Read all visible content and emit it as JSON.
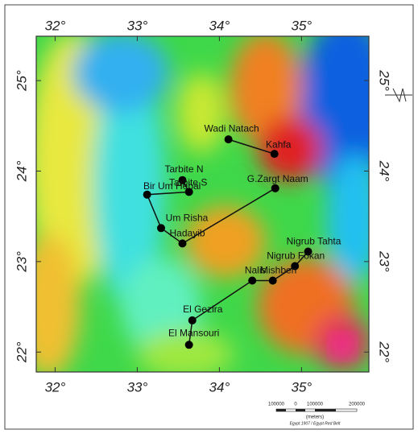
{
  "map": {
    "xlim": [
      31.77,
      35.82
    ],
    "ylim": [
      21.78,
      25.49
    ],
    "lon_ticks": [
      {
        "value": 32,
        "label": "32°"
      },
      {
        "value": 33,
        "label": "33°"
      },
      {
        "value": 34,
        "label": "34°"
      },
      {
        "value": 35,
        "label": "35°"
      }
    ],
    "lat_ticks": [
      {
        "value": 25,
        "label": "25°"
      },
      {
        "value": 24,
        "label": "24°"
      },
      {
        "value": 23,
        "label": "23°"
      },
      {
        "value": 22,
        "label": "22°"
      }
    ],
    "stations": [
      {
        "name": "Wadi Natach",
        "lon": 34.11,
        "lat": 24.35
      },
      {
        "name": "Kahfa",
        "lon": 34.67,
        "lat": 24.19
      },
      {
        "name": "Tarbite N",
        "lon": 33.55,
        "lat": 23.9
      },
      {
        "name": "Tarbite S",
        "lon": 33.63,
        "lat": 23.77
      },
      {
        "name": "Bir Um Hebal",
        "lon": 33.12,
        "lat": 23.74
      },
      {
        "name": "G.Zargt Naam",
        "lon": 34.68,
        "lat": 23.81
      },
      {
        "name": "Um Risha",
        "lon": 33.29,
        "lat": 23.37
      },
      {
        "name": "Hadayib",
        "lon": 33.55,
        "lat": 23.2
      },
      {
        "name": "Nigrub Tahta",
        "lon": 35.08,
        "lat": 23.11
      },
      {
        "name": "Nigrub Fokan",
        "lon": 34.92,
        "lat": 22.95
      },
      {
        "name": "Mishbeh",
        "lon": 34.65,
        "lat": 22.79
      },
      {
        "name": "Nalis",
        "lon": 34.4,
        "lat": 22.79
      },
      {
        "name": "El Gezira",
        "lon": 33.67,
        "lat": 22.35
      },
      {
        "name": "El Mansouri",
        "lon": 33.63,
        "lat": 22.08
      }
    ],
    "scale_bar": {
      "labels": [
        "100000",
        "0",
        "100000",
        "200000"
      ],
      "unit": "(meters)",
      "projection": "Egypt 1907 / Egypt Red Belt"
    }
  }
}
